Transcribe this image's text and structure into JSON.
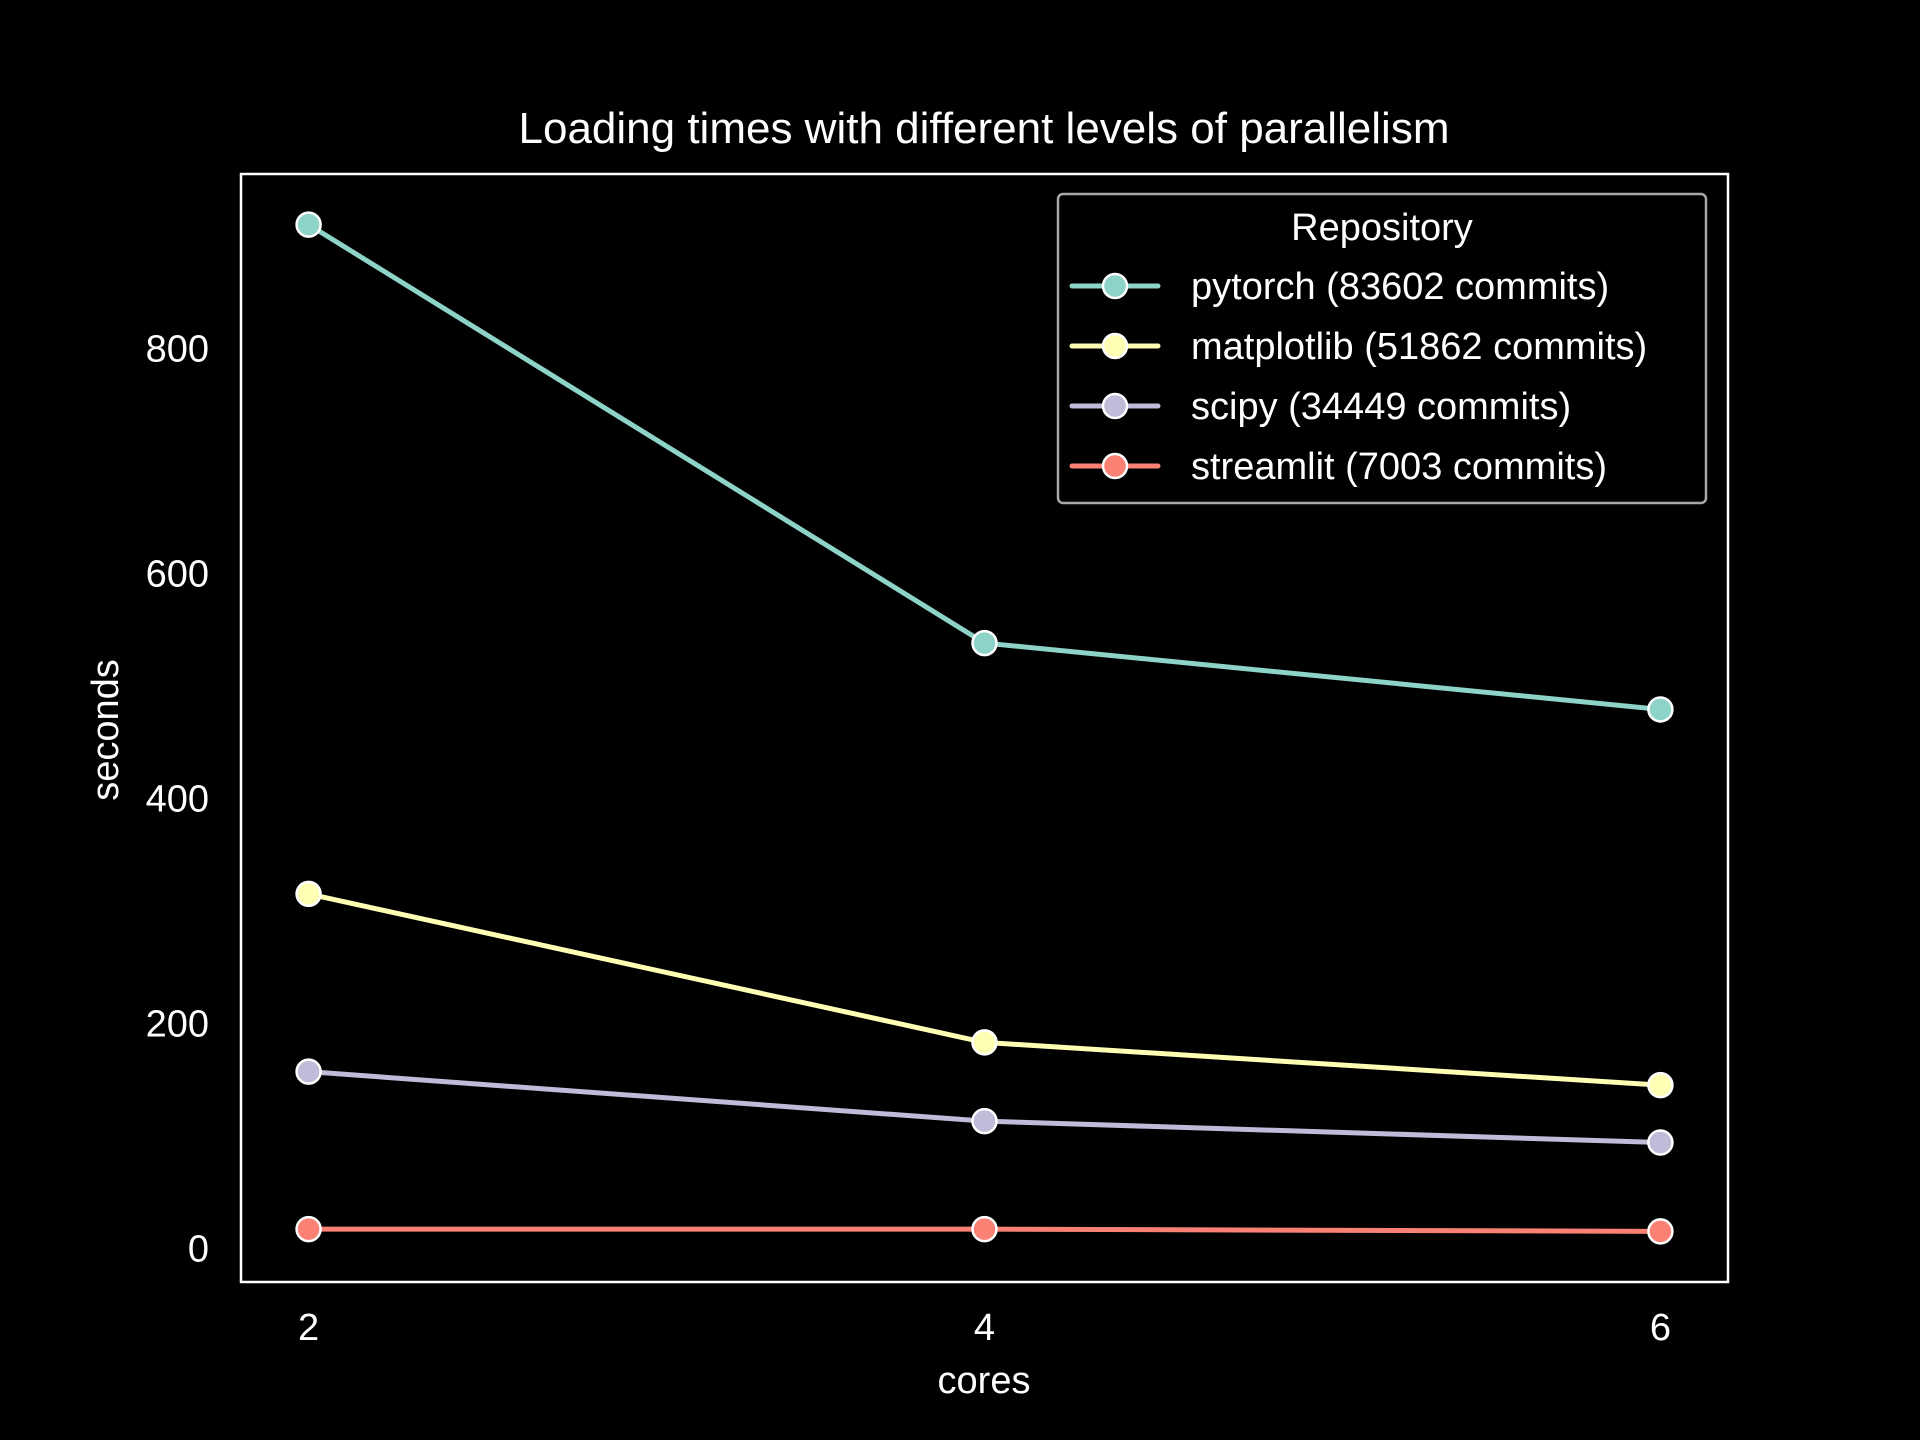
{
  "chart_data": {
    "type": "line",
    "title": "Loading times with different levels of parallelism",
    "xlabel": "cores",
    "ylabel": "seconds",
    "x": [
      2,
      4,
      6
    ],
    "xticks": [
      2,
      4,
      6
    ],
    "yticks": [
      0,
      200,
      400,
      600,
      800
    ],
    "xlim": [
      1.8,
      6.2
    ],
    "ylim": [
      -30,
      955
    ],
    "grid": false,
    "legend": {
      "title": "Repository",
      "placement": "top-right"
    },
    "series": [
      {
        "name": "pytorch (83602 commits)",
        "color": "#8dd3c7",
        "values": [
          910,
          538,
          479
        ]
      },
      {
        "name": "matplotlib (51862 commits)",
        "color": "#feffb3",
        "values": [
          315,
          183,
          145
        ]
      },
      {
        "name": "scipy (34449 commits)",
        "color": "#bfbbd9",
        "values": [
          157,
          113,
          94
        ]
      },
      {
        "name": "streamlit (7003 commits)",
        "color": "#fa8174",
        "values": [
          17,
          17,
          15
        ]
      }
    ]
  }
}
